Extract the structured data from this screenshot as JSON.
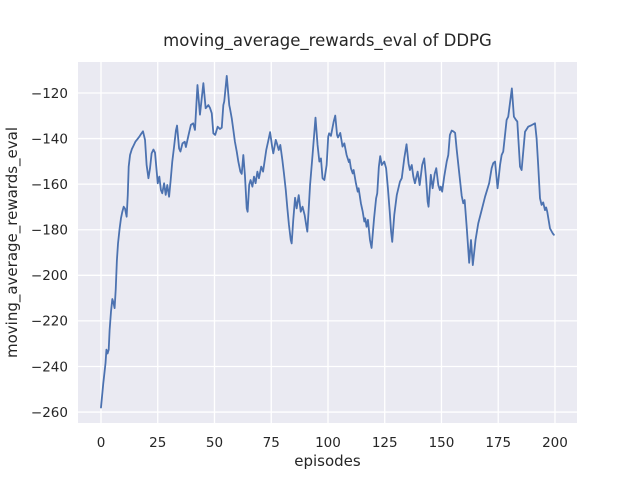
{
  "figure": {
    "background": "#ffffff",
    "plot_background": "#eaeaf2",
    "grid_color": "#ffffff",
    "text_color": "#262626"
  },
  "chart_data": {
    "type": "line",
    "title": "moving_average_rewards_eval of DDPG",
    "xlabel": "episodes",
    "ylabel": "moving_average_rewards_eval",
    "xlim": [
      -10.13,
      209.7
    ],
    "ylim": [
      -264.8,
      -106.4
    ],
    "grid": true,
    "legend": null,
    "xticks": [
      0,
      25,
      50,
      75,
      100,
      125,
      150,
      175,
      200
    ],
    "xtick_labels": [
      "0",
      "25",
      "50",
      "75",
      "100",
      "125",
      "150",
      "175",
      "200"
    ],
    "yticks": [
      -120,
      -140,
      -160,
      -180,
      -200,
      -220,
      -240,
      -260
    ],
    "ytick_labels": [
      "−120",
      "−140",
      "−160",
      "−180",
      "−200",
      "−220",
      "−240",
      "−260"
    ],
    "series": [
      {
        "name": "moving_average_rewards_eval",
        "color": "#4c72b0",
        "line_width": 1.8,
        "points": [
          [
            0,
            -258
          ],
          [
            1,
            -247.5
          ],
          [
            2,
            -238.5
          ],
          [
            2.4,
            -232.6
          ],
          [
            2.9,
            -234.3
          ],
          [
            3.4,
            -232.6
          ],
          [
            3.8,
            -224
          ],
          [
            4.4,
            -216
          ],
          [
            5,
            -210.4
          ],
          [
            5.5,
            -212
          ],
          [
            6,
            -214.4
          ],
          [
            6.5,
            -206
          ],
          [
            7,
            -193.5
          ],
          [
            7.5,
            -186
          ],
          [
            8.2,
            -179.5
          ],
          [
            8.8,
            -175
          ],
          [
            9.4,
            -172.1
          ],
          [
            10,
            -169.9
          ],
          [
            10.6,
            -170.8
          ],
          [
            11.3,
            -174.3
          ],
          [
            11.8,
            -164.7
          ],
          [
            12.2,
            -152.3
          ],
          [
            12.8,
            -147.2
          ],
          [
            13.6,
            -144.6
          ],
          [
            14.4,
            -143
          ],
          [
            15.2,
            -141.3
          ],
          [
            16,
            -140.3
          ],
          [
            17,
            -139
          ],
          [
            17.8,
            -137.8
          ],
          [
            18.5,
            -136.8
          ],
          [
            19.4,
            -140.6
          ],
          [
            20.1,
            -151.6
          ],
          [
            20.9,
            -157.4
          ],
          [
            21.6,
            -153
          ],
          [
            22.3,
            -146.5
          ],
          [
            23.1,
            -144.8
          ],
          [
            23.8,
            -146.2
          ],
          [
            25,
            -159.6
          ],
          [
            25.7,
            -156.7
          ],
          [
            26.4,
            -162.6
          ],
          [
            27,
            -164
          ],
          [
            27.8,
            -159.6
          ],
          [
            28.5,
            -164.7
          ],
          [
            29.2,
            -160.4
          ],
          [
            30,
            -165.5
          ],
          [
            30.7,
            -158.2
          ],
          [
            31.4,
            -150.1
          ],
          [
            32.2,
            -143.5
          ],
          [
            33,
            -136.5
          ],
          [
            33.5,
            -134.3
          ],
          [
            34.4,
            -144.3
          ],
          [
            35,
            -145.7
          ],
          [
            35.9,
            -142.1
          ],
          [
            36.9,
            -141.4
          ],
          [
            37.4,
            -143.7
          ],
          [
            38.4,
            -139.2
          ],
          [
            39.6,
            -134
          ],
          [
            40.6,
            -133.3
          ],
          [
            41.4,
            -136.2
          ],
          [
            42.5,
            -116.5
          ],
          [
            43.6,
            -129.5
          ],
          [
            45.1,
            -115.7
          ],
          [
            46.1,
            -126.7
          ],
          [
            47.3,
            -125.3
          ],
          [
            48,
            -126.5
          ],
          [
            48.8,
            -128.9
          ],
          [
            49.5,
            -137.7
          ],
          [
            50.3,
            -138.4
          ],
          [
            51.4,
            -134.8
          ],
          [
            52.4,
            -135.8
          ],
          [
            53.2,
            -135.2
          ],
          [
            53.9,
            -125.3
          ],
          [
            54.3,
            -123.7
          ],
          [
            55.4,
            -112.5
          ],
          [
            56.5,
            -125.3
          ],
          [
            56.8,
            -126.7
          ],
          [
            57.6,
            -131.1
          ],
          [
            58.3,
            -136.2
          ],
          [
            59,
            -141.4
          ],
          [
            59.8,
            -145.7
          ],
          [
            60.5,
            -150.1
          ],
          [
            61.4,
            -154.5
          ],
          [
            62,
            -155.5
          ],
          [
            62.7,
            -147.2
          ],
          [
            63.4,
            -156
          ],
          [
            64.2,
            -170.6
          ],
          [
            64.6,
            -172.1
          ],
          [
            65.3,
            -160.2
          ],
          [
            65.9,
            -158.2
          ],
          [
            66.7,
            -161.1
          ],
          [
            67.4,
            -156.7
          ],
          [
            68.1,
            -159.6
          ],
          [
            68.9,
            -154.5
          ],
          [
            69.6,
            -157.4
          ],
          [
            70.6,
            -152.3
          ],
          [
            71.4,
            -154.5
          ],
          [
            72.8,
            -145
          ],
          [
            73.6,
            -141.4
          ],
          [
            74.5,
            -137.2
          ],
          [
            75.5,
            -144.3
          ],
          [
            75.9,
            -146.5
          ],
          [
            77,
            -140.6
          ],
          [
            77.5,
            -142.1
          ],
          [
            78.3,
            -145
          ],
          [
            79,
            -142.8
          ],
          [
            79.9,
            -149.4
          ],
          [
            80.6,
            -155.3
          ],
          [
            81.4,
            -162.6
          ],
          [
            82.1,
            -170.6
          ],
          [
            82.8,
            -177.9
          ],
          [
            83.6,
            -184.5
          ],
          [
            84,
            -186
          ],
          [
            84.7,
            -175.7
          ],
          [
            85.5,
            -166
          ],
          [
            86.2,
            -170.6
          ],
          [
            87.1,
            -164.8
          ],
          [
            88,
            -172.1
          ],
          [
            88.8,
            -169.9
          ],
          [
            89.7,
            -173.5
          ],
          [
            90.4,
            -177.9
          ],
          [
            90.9,
            -180.8
          ],
          [
            91.5,
            -171
          ],
          [
            92.1,
            -160.4
          ],
          [
            93.2,
            -147.2
          ],
          [
            94.5,
            -130.8
          ],
          [
            95.4,
            -142.8
          ],
          [
            96.2,
            -150.1
          ],
          [
            96.9,
            -148.7
          ],
          [
            97.6,
            -157.4
          ],
          [
            98.4,
            -158.2
          ],
          [
            99.4,
            -151.6
          ],
          [
            100.1,
            -139.2
          ],
          [
            100.5,
            -137.7
          ],
          [
            101.3,
            -138.8
          ],
          [
            102.5,
            -132.6
          ],
          [
            103.2,
            -129.9
          ],
          [
            104,
            -138.4
          ],
          [
            104.4,
            -139.5
          ],
          [
            105.4,
            -137.5
          ],
          [
            106.4,
            -143.5
          ],
          [
            107.2,
            -142.1
          ],
          [
            108.2,
            -147.2
          ],
          [
            109.2,
            -150.3
          ],
          [
            109.5,
            -149.2
          ],
          [
            110.1,
            -153
          ],
          [
            110.9,
            -155.3
          ],
          [
            111.3,
            -153.8
          ],
          [
            112.3,
            -159.6
          ],
          [
            113.1,
            -163.3
          ],
          [
            113.5,
            -161.8
          ],
          [
            114.5,
            -168.4
          ],
          [
            115.3,
            -172.1
          ],
          [
            116,
            -176.4
          ],
          [
            116.4,
            -175
          ],
          [
            117,
            -178.7
          ],
          [
            117.6,
            -175.7
          ],
          [
            118.5,
            -184.5
          ],
          [
            119.2,
            -188
          ],
          [
            120.3,
            -175
          ],
          [
            121.2,
            -166.2
          ],
          [
            121.7,
            -164
          ],
          [
            122.4,
            -152.5
          ],
          [
            123,
            -147.7
          ],
          [
            123.7,
            -151.6
          ],
          [
            124.8,
            -150.1
          ],
          [
            125.6,
            -153
          ],
          [
            126.4,
            -161.8
          ],
          [
            127.2,
            -172
          ],
          [
            127.8,
            -180.8
          ],
          [
            128.3,
            -185.3
          ],
          [
            129.2,
            -173.5
          ],
          [
            130.3,
            -164.8
          ],
          [
            131.7,
            -158.9
          ],
          [
            132.5,
            -157.4
          ],
          [
            133.6,
            -148.7
          ],
          [
            134.6,
            -142.5
          ],
          [
            135.5,
            -151
          ],
          [
            136.1,
            -153.8
          ],
          [
            136.9,
            -151.6
          ],
          [
            137.6,
            -156.7
          ],
          [
            138.3,
            -159.6
          ],
          [
            139.5,
            -154.5
          ],
          [
            140.4,
            -160.4
          ],
          [
            141.5,
            -151.6
          ],
          [
            142.4,
            -148.7
          ],
          [
            143.2,
            -157.4
          ],
          [
            143.9,
            -167.7
          ],
          [
            144.3,
            -169.9
          ],
          [
            145.3,
            -155.9
          ],
          [
            146.1,
            -161.8
          ],
          [
            147,
            -155.5
          ],
          [
            147.7,
            -153
          ],
          [
            148.6,
            -160.4
          ],
          [
            149.3,
            -162.6
          ],
          [
            149.7,
            -161.1
          ],
          [
            150.3,
            -163.3
          ],
          [
            151.2,
            -156.7
          ],
          [
            152.3,
            -150.1
          ],
          [
            153,
            -147.2
          ],
          [
            153.7,
            -138.4
          ],
          [
            154.5,
            -136.5
          ],
          [
            155.2,
            -136.8
          ],
          [
            156,
            -137.5
          ],
          [
            156.7,
            -144.8
          ],
          [
            157.8,
            -155
          ],
          [
            158.9,
            -165.1
          ],
          [
            159.6,
            -168.4
          ],
          [
            160.2,
            -167
          ],
          [
            161.1,
            -178.7
          ],
          [
            162.2,
            -194.5
          ],
          [
            163,
            -184.5
          ],
          [
            163.8,
            -195.5
          ],
          [
            165,
            -184.5
          ],
          [
            166.2,
            -177.2
          ],
          [
            167.7,
            -171.4
          ],
          [
            169.2,
            -165.5
          ],
          [
            171,
            -159.6
          ],
          [
            172.1,
            -153
          ],
          [
            172.8,
            -150.8
          ],
          [
            173.6,
            -150.1
          ],
          [
            174.7,
            -161.8
          ],
          [
            175.8,
            -151.6
          ],
          [
            176.5,
            -147.2
          ],
          [
            177.2,
            -145.7
          ],
          [
            178.7,
            -131.8
          ],
          [
            179.4,
            -130.4
          ],
          [
            181,
            -118
          ],
          [
            181.9,
            -130.4
          ],
          [
            182.8,
            -131.8
          ],
          [
            183.4,
            -132.5
          ],
          [
            184.6,
            -152.3
          ],
          [
            185.3,
            -153.8
          ],
          [
            186.8,
            -137
          ],
          [
            188.2,
            -134.8
          ],
          [
            189.7,
            -134.1
          ],
          [
            191.2,
            -133.3
          ],
          [
            191.9,
            -139.9
          ],
          [
            192.6,
            -151.6
          ],
          [
            193.4,
            -166.2
          ],
          [
            194.1,
            -169.1
          ],
          [
            194.8,
            -168
          ],
          [
            195.6,
            -171.4
          ],
          [
            196.1,
            -170.2
          ],
          [
            196.6,
            -172.1
          ],
          [
            197.8,
            -179.4
          ],
          [
            199,
            -181.6
          ],
          [
            199.5,
            -182.2
          ]
        ]
      }
    ]
  }
}
